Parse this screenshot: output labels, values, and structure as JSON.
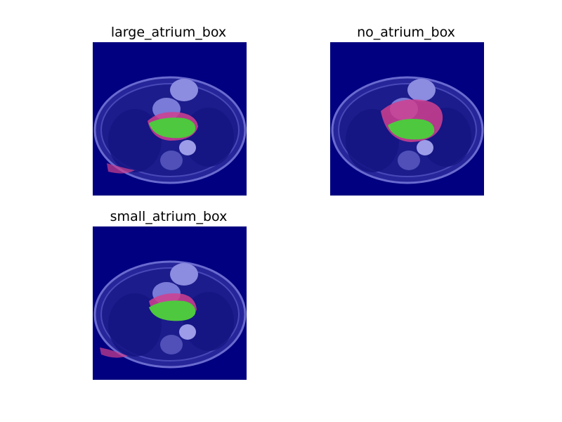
{
  "figure": {
    "panels": [
      {
        "title": "large_atrium_box",
        "overlay": "pink-green",
        "variant": "large"
      },
      {
        "title": "no_atrium_box",
        "overlay": "pink-green",
        "variant": "none"
      },
      {
        "title": "small_atrium_box",
        "overlay": "pink-green",
        "variant": "small"
      }
    ],
    "colors": {
      "background": "#000080",
      "body": "#3a3aa8",
      "mask_pink": "#d0408e",
      "mask_green": "#4ec83e"
    }
  }
}
